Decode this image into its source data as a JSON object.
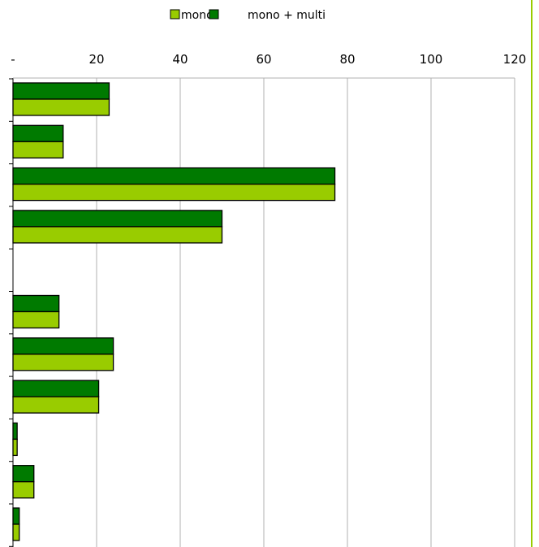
{
  "chart_data": {
    "type": "bar",
    "orientation": "horizontal",
    "title": "",
    "xlabel": "",
    "ylabel": "",
    "xlim": [
      0,
      120
    ],
    "x_ticks": [
      0,
      20,
      40,
      60,
      80,
      100,
      120
    ],
    "x_tick_labels": [
      "-",
      "20",
      "40",
      "60",
      "80",
      "100",
      "120"
    ],
    "grid": "vertical",
    "legend": {
      "placement": "top",
      "entries": [
        "mono",
        "mono + multi"
      ]
    },
    "categories": [
      "",
      "",
      "",
      "",
      "",
      "",
      "",
      "",
      "",
      "",
      "",
      ""
    ],
    "series": [
      {
        "name": "mono + multi",
        "color": "#007a00",
        "values": [
          23,
          12,
          77,
          50,
          0,
          11,
          24,
          20.5,
          1,
          5,
          1.5,
          0
        ]
      },
      {
        "name": "mono",
        "color": "#99cc00",
        "values": [
          23,
          12,
          77,
          50,
          0,
          11,
          24,
          20.5,
          1,
          5,
          1.5,
          0
        ]
      }
    ],
    "colors": {
      "grid": "#b0b0b0",
      "accent_line": "#99cc00"
    }
  }
}
